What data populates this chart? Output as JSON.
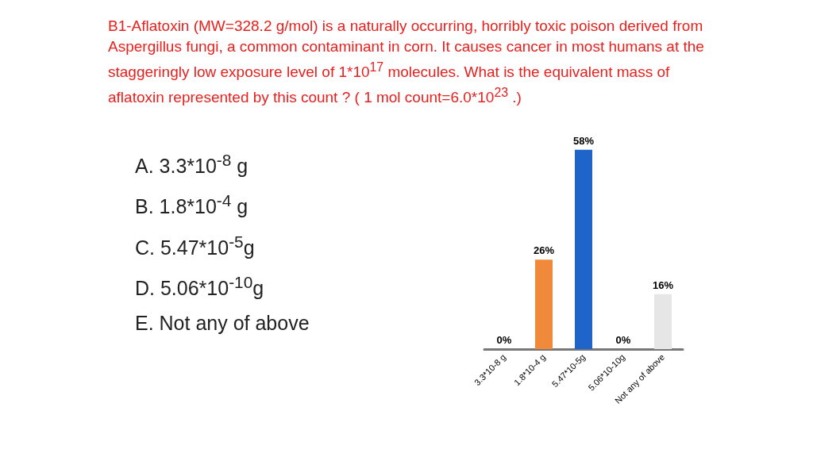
{
  "chart_data": {
    "type": "bar",
    "title": "B1-Aflatoxin (MW=328.2 g/mol) is a naturally occurring, horribly toxic poison derived from Aspergillus fungi, a common contaminant in corn. It causes cancer in most humans at the staggeringly low exposure level of 1*10$^{17}$ molecules.  What is the equivalent mass of aflatoxin represented by this count ? ( 1 mol count=6.0*10$^{23}$ .)",
    "annotations": [
      "A. 3.3*10$^{-8}$ g",
      "B. 1.8*10$^{-4}$ g",
      "C. 5.47*10$^{-5}$g",
      "D. 5.06*10$^{-10}$g",
      "E. Not any of above"
    ],
    "categories": [
      "3.3*10-8 g",
      "1.8*10-4 g",
      "5.47*10-5g",
      "5.06*10-10g",
      "Not any of above"
    ],
    "values": [
      0,
      26,
      58,
      0,
      16
    ],
    "colors": [
      "#4f81bd",
      "#f08a3a",
      "#1f64c8",
      "#7a3650",
      "#e6e6e6"
    ],
    "value_labels": [
      "0%",
      "26%",
      "58%",
      "0%",
      "16%"
    ],
    "grid": false
  }
}
